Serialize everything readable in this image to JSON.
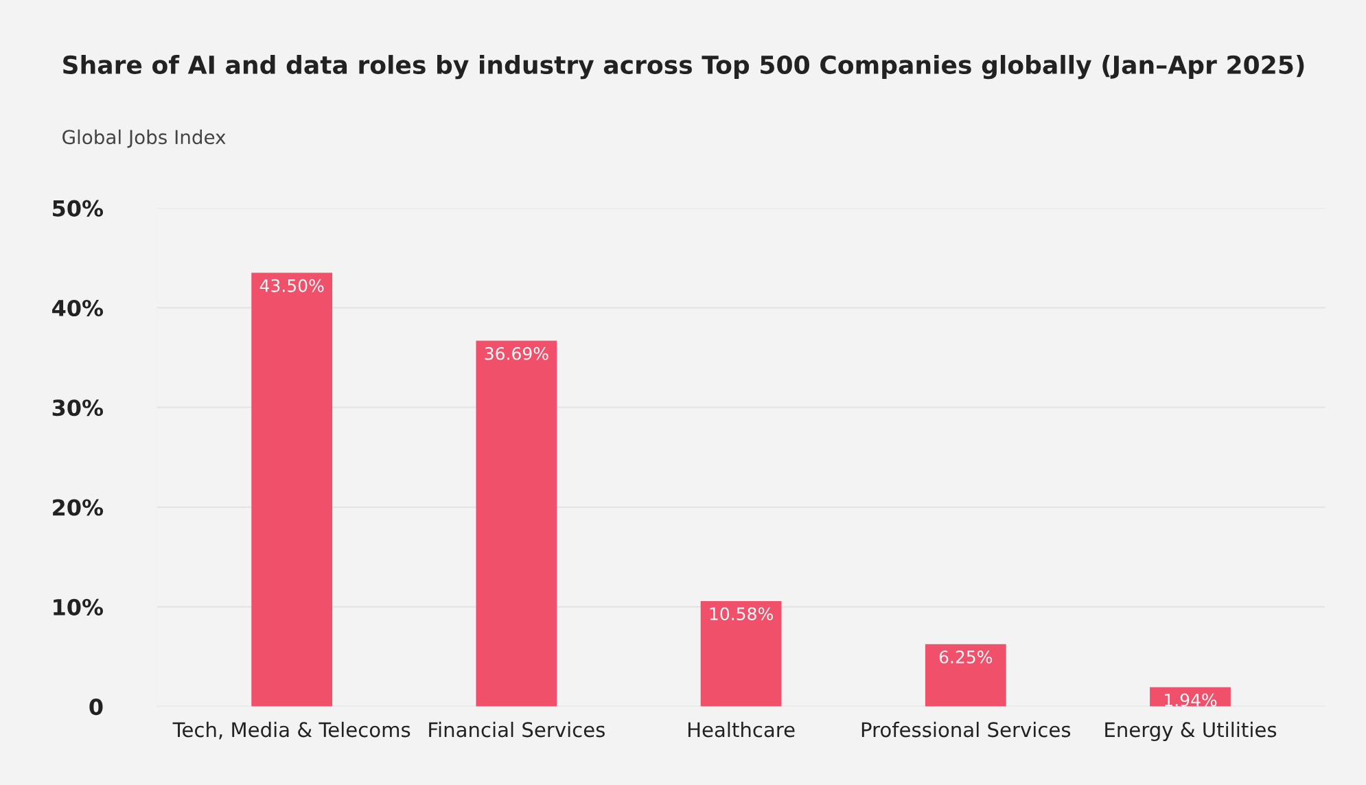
{
  "chart_data": {
    "type": "bar",
    "title": "Share of AI and data roles by industry across Top 500 Companies globally (Jan–Apr 2025)",
    "subtitle": "Global Jobs Index",
    "categories": [
      "Tech, Media & Telecoms",
      "Financial Services",
      "Healthcare",
      "Professional Services",
      "Energy & Utilities"
    ],
    "values": [
      43.5,
      36.69,
      10.58,
      6.25,
      1.94
    ],
    "value_labels": [
      "43.50%",
      "36.69%",
      "10.58%",
      "6.25%",
      "1.94%"
    ],
    "color": "#f0506a",
    "ylim": [
      0,
      50
    ],
    "yticks": [
      0,
      {
        "value": 10,
        "label": "10%"
      },
      {
        "value": 20,
        "label": "20%"
      },
      {
        "value": 30,
        "label": "30%"
      },
      {
        "value": 40,
        "label": "40%"
      },
      {
        "value": 50,
        "label": "50%"
      }
    ],
    "grid": "y"
  }
}
